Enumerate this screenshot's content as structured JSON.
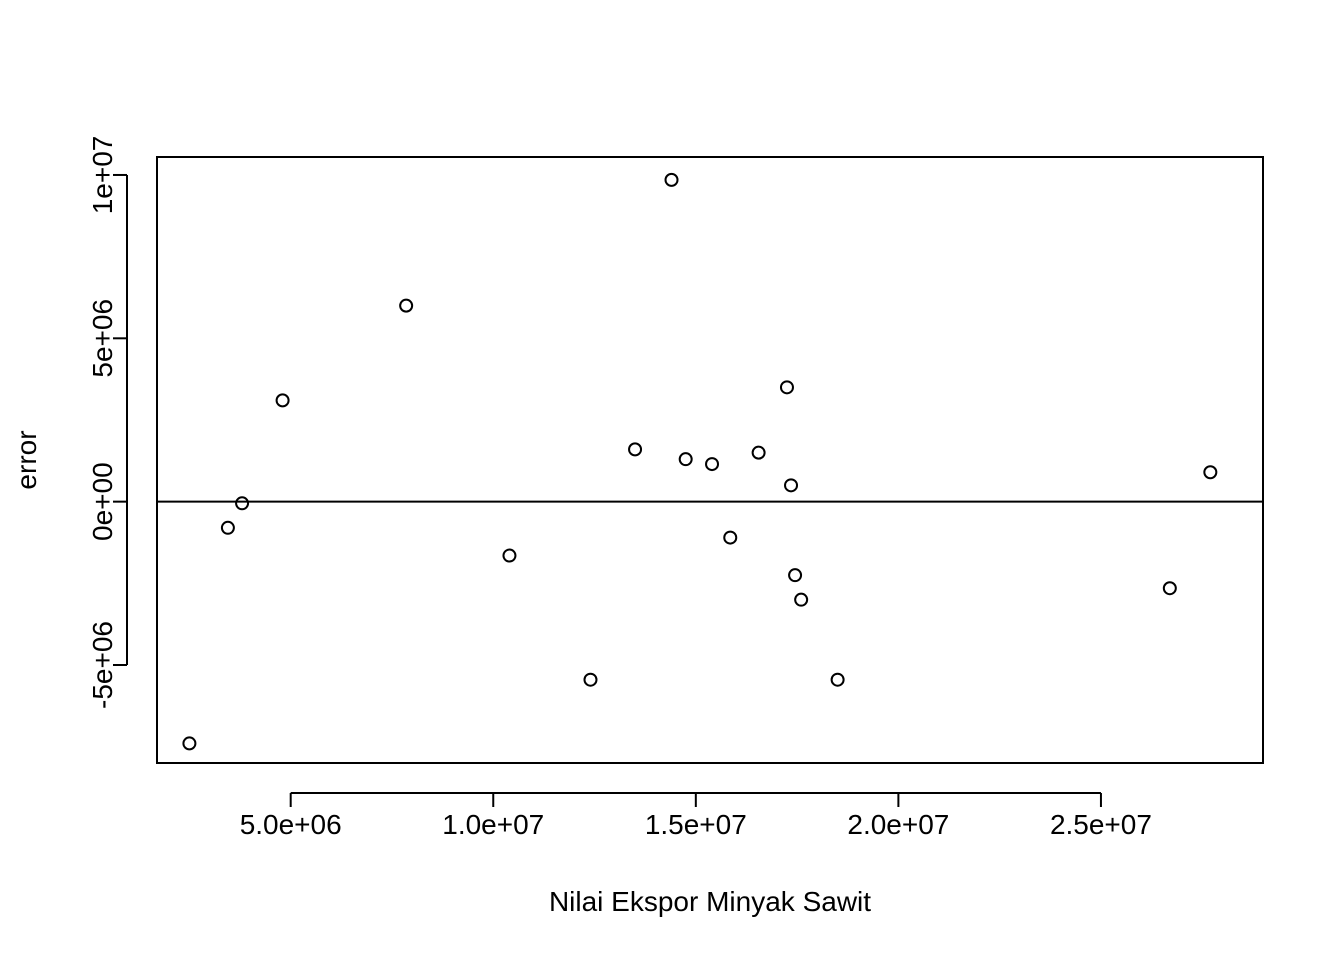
{
  "chart_data": {
    "type": "scatter",
    "title": "",
    "xlabel": "Nilai Ekspor Minyak Sawit",
    "ylabel": "error",
    "xlim": [
      1700000,
      29000000
    ],
    "ylim": [
      -8000000,
      10550000
    ],
    "x_ticks": [
      5000000,
      10000000,
      15000000,
      20000000,
      25000000
    ],
    "x_tick_labels": [
      "5.0e+06",
      "1.0e+07",
      "1.5e+07",
      "2.0e+07",
      "2.5e+07"
    ],
    "y_ticks": [
      -5000000,
      0,
      5000000,
      10000000
    ],
    "y_tick_labels": [
      "-5e+06",
      "0e+00",
      "5e+06",
      "1e+07"
    ],
    "reference_line_y": 0,
    "grid": false,
    "points": [
      {
        "x": 2500000,
        "y": -7400000
      },
      {
        "x": 3450000,
        "y": -800000
      },
      {
        "x": 3800000,
        "y": -50000
      },
      {
        "x": 4800000,
        "y": 3100000
      },
      {
        "x": 7850000,
        "y": 6000000
      },
      {
        "x": 10400000,
        "y": -1650000
      },
      {
        "x": 12400000,
        "y": -5450000
      },
      {
        "x": 13500000,
        "y": 1600000
      },
      {
        "x": 14400000,
        "y": 9850000
      },
      {
        "x": 14750000,
        "y": 1300000
      },
      {
        "x": 15400000,
        "y": 1150000
      },
      {
        "x": 15850000,
        "y": -1100000
      },
      {
        "x": 16550000,
        "y": 1500000
      },
      {
        "x": 17250000,
        "y": 3500000
      },
      {
        "x": 17350000,
        "y": 500000
      },
      {
        "x": 17450000,
        "y": -2250000
      },
      {
        "x": 17600000,
        "y": -3000000
      },
      {
        "x": 18500000,
        "y": -5450000
      },
      {
        "x": 26700000,
        "y": -2650000
      },
      {
        "x": 27700000,
        "y": 900000
      }
    ]
  }
}
